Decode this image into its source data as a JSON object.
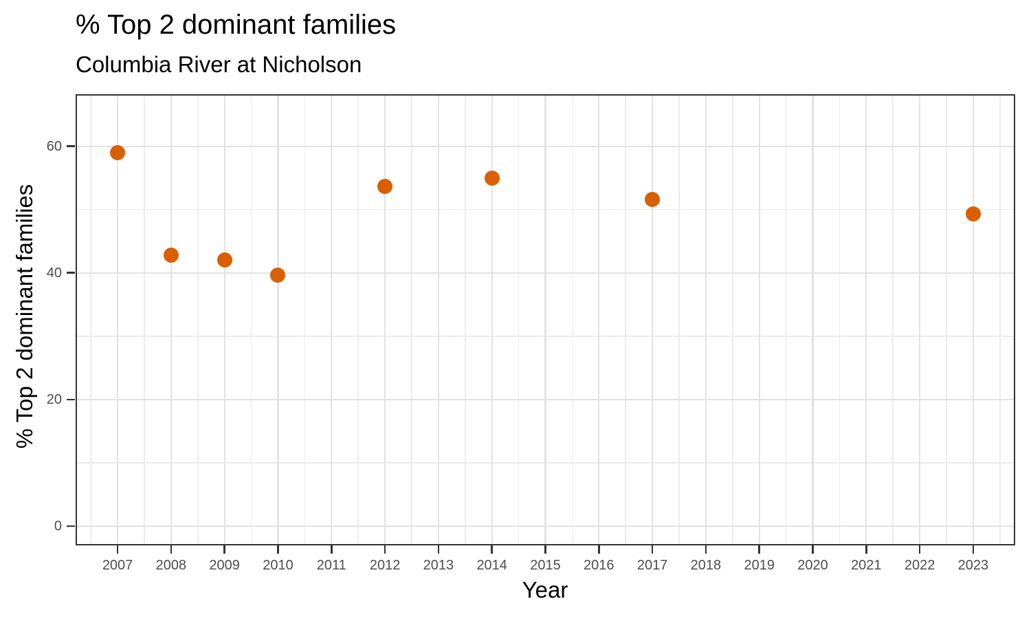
{
  "chart_data": {
    "type": "scatter",
    "title": "% Top 2 dominant families",
    "subtitle": "Columbia River at Nicholson",
    "xlabel": "Year",
    "ylabel": "% Top 2 dominant families",
    "x_ticks": [
      2007,
      2008,
      2009,
      2010,
      2011,
      2012,
      2013,
      2014,
      2015,
      2016,
      2017,
      2018,
      2019,
      2020,
      2021,
      2022,
      2023
    ],
    "y_ticks": [
      0,
      20,
      40,
      60
    ],
    "xlim": [
      2006.215,
      2023.785
    ],
    "ylim": [
      -3.05,
      68.22
    ],
    "grid": "major-and-minor",
    "legend_position": "none",
    "points": [
      {
        "x": 2007,
        "y": 59.0
      },
      {
        "x": 2008,
        "y": 42.8
      },
      {
        "x": 2009,
        "y": 42.0
      },
      {
        "x": 2010,
        "y": 39.6
      },
      {
        "x": 2012,
        "y": 53.7
      },
      {
        "x": 2014,
        "y": 55.0
      },
      {
        "x": 2017,
        "y": 51.6
      },
      {
        "x": 2023,
        "y": 49.3
      }
    ],
    "colors": {
      "point": "#D95F02",
      "grid_major": "#E3E3E3",
      "grid_minor": "#ECECEC",
      "panel_border": "#333333",
      "tick": "#333333",
      "tick_label": "#4D4D4D",
      "title_text": "#000000",
      "background": "#FFFFFF"
    }
  }
}
